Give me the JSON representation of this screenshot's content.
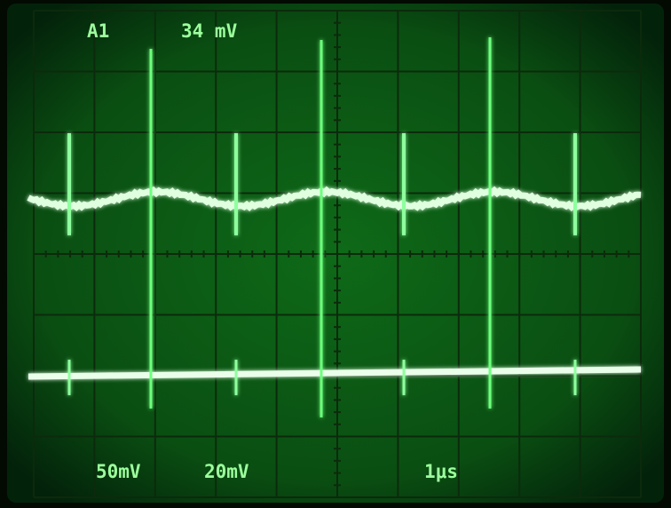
{
  "readouts": {
    "channel": "A1",
    "measurement": "34 mV",
    "ch1_scale": "50mV",
    "ch2_scale": "20mV",
    "timebase": "1μs"
  }
}
